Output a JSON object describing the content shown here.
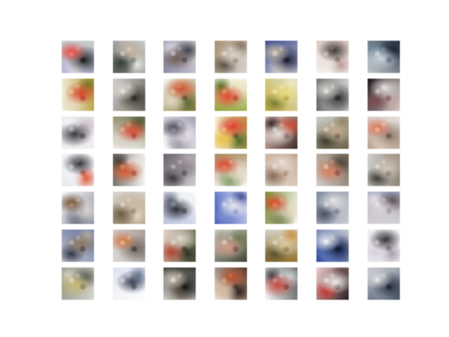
{
  "grid": {
    "rows": 7,
    "cols": 7
  },
  "tiles": [
    {
      "bg": "#b7b4d2",
      "c1": "#e24a3f",
      "c2": "#22282a",
      "c3": "#f2f0f4"
    },
    {
      "bg": "#6b6a63",
      "c1": "#c7b6a4",
      "c2": "#34403a",
      "c3": "#e7e6e2"
    },
    {
      "bg": "#8f8ba8",
      "c1": "#6e5c55",
      "c2": "#3d3c45",
      "c3": "#dcd6dd"
    },
    {
      "bg": "#a59174",
      "c1": "#d9d0c6",
      "c2": "#5a5048",
      "c3": "#7b6b56"
    },
    {
      "bg": "#3c4a8a",
      "c1": "#c7bba5",
      "c2": "#20243e",
      "c3": "#e9e0d2"
    },
    {
      "bg": "#d8c5bd",
      "c1": "#3e3533",
      "c2": "#ece1dc",
      "c3": "#b99d96"
    },
    {
      "bg": "#283649",
      "c1": "#c7d5dd",
      "c2": "#17202a",
      "c3": "#6f8593"
    },
    {
      "bg": "#b29b38",
      "c1": "#d2462d",
      "c2": "#e6d8be",
      "c3": "#6e7b2c"
    },
    {
      "bg": "#6d675e",
      "c1": "#d9d4cc",
      "c2": "#3d3a36",
      "c3": "#a49b8f"
    },
    {
      "bg": "#8a7a3e",
      "c1": "#c84f2d",
      "c2": "#dfd7c2",
      "c3": "#5f6b34"
    },
    {
      "bg": "#92a33c",
      "c1": "#db4a33",
      "c2": "#f0e6c8",
      "c3": "#5a6d2c"
    },
    {
      "bg": "#c7b24a",
      "c1": "#e8da7d",
      "c2": "#7a7a32",
      "c3": "#efe9c9"
    },
    {
      "bg": "#6a6a68",
      "c1": "#d5d2ce",
      "c2": "#3b3b3b",
      "c3": "#9d9c99"
    },
    {
      "bg": "#1b1315",
      "c1": "#e5dedd",
      "c2": "#7d4d50",
      "c3": "#c1a8a4"
    },
    {
      "bg": "#e6e3ea",
      "c1": "#3a3a3f",
      "c2": "#c9b8c4",
      "c3": "#fbfbfb"
    },
    {
      "bg": "#7a7a55",
      "c1": "#d64e35",
      "c2": "#d8d1c5",
      "c3": "#4a5532"
    },
    {
      "bg": "#a7a2b6",
      "c1": "#4b4753",
      "c2": "#e6e1ea",
      "c3": "#7f7887"
    },
    {
      "bg": "#b6924a",
      "c1": "#d83a2b",
      "c2": "#e6c14a",
      "c3": "#4a6b2e"
    },
    {
      "bg": "#3f2a25",
      "c1": "#e4ddd9",
      "c2": "#cc4b33",
      "c3": "#1e1614"
    },
    {
      "bg": "#6c6247",
      "c1": "#c1ad8e",
      "c2": "#3d3a2d",
      "c3": "#8d7f63"
    },
    {
      "bg": "#b9a191",
      "c1": "#d9765d",
      "c2": "#8f7d70",
      "c3": "#e4d8cf"
    },
    {
      "bg": "#e3e4ec",
      "c1": "#2e3035",
      "c2": "#f2f2f5",
      "c3": "#d95a3b"
    },
    {
      "bg": "#6f6b63",
      "c1": "#d25a34",
      "c2": "#e9e3dc",
      "c3": "#3f3b36"
    },
    {
      "bg": "#69636b",
      "c1": "#8b8189",
      "c2": "#3a353a",
      "c3": "#b8a9b4"
    },
    {
      "bg": "#a88d62",
      "c1": "#d8442f",
      "c2": "#e9e1d2",
      "c3": "#5c7f3b"
    },
    {
      "bg": "#c1a38b",
      "c1": "#e5d9cf",
      "c2": "#8b6b58",
      "c3": "#d9c4b5"
    },
    {
      "bg": "#7a6a5a",
      "c1": "#d67f63",
      "c2": "#4a4039",
      "c3": "#b8a390"
    },
    {
      "bg": "#8f8477",
      "c1": "#d1c6bc",
      "c2": "#3e3a35",
      "c3": "#ad9d8e"
    },
    {
      "bg": "#8b8ea1",
      "c1": "#6b4e33",
      "c2": "#dad6d2",
      "c3": "#4e5768"
    },
    {
      "bg": "#a8957a",
      "c1": "#c8b8a3",
      "c2": "#6b5a45",
      "c3": "#dfd4c7"
    },
    {
      "bg": "#b9c2dd",
      "c1": "#2b2f35",
      "c2": "#f4f4f6",
      "c3": "#6b7282"
    },
    {
      "bg": "#3c54b5",
      "c1": "#e7e6ee",
      "c2": "#7f8fca",
      "c3": "#263882"
    },
    {
      "bg": "#7b8a3b",
      "c1": "#d4472e",
      "c2": "#e7ddc8",
      "c3": "#516126"
    },
    {
      "bg": "#7f889e",
      "c1": "#e2e1e3",
      "c2": "#4a5060",
      "c3": "#b9bcc6"
    },
    {
      "bg": "#9aa1be",
      "c1": "#dcd4d6",
      "c2": "#5b4d4d",
      "c3": "#e7e0e3"
    },
    {
      "bg": "#5c6d9b",
      "c1": "#8b785f",
      "c2": "#2f3342",
      "c3": "#b8b2a6"
    },
    {
      "bg": "#a99f98",
      "c1": "#d2794a",
      "c2": "#6a615b",
      "c3": "#d8d1cc"
    },
    {
      "bg": "#4f5b3c",
      "c1": "#d6d0c5",
      "c2": "#b04532",
      "c3": "#2d3526"
    },
    {
      "bg": "#3f4533",
      "c1": "#d09a86",
      "c2": "#6b7550",
      "c3": "#a29d91"
    },
    {
      "bg": "#8e6f2d",
      "c1": "#d8c9a3",
      "c2": "#5a5130",
      "c3": "#c58b3a"
    },
    {
      "bg": "#2e4a9a",
      "c1": "#e7e9ef",
      "c2": "#101c3f",
      "c3": "#6d86c7"
    },
    {
      "bg": "#ece8f0",
      "c1": "#2d2b2f",
      "c2": "#d6d0da",
      "c3": "#a59eaa"
    },
    {
      "bg": "#8a8d7c",
      "c1": "#c8b978",
      "c2": "#5a5c50",
      "c3": "#d4d1c4"
    },
    {
      "bg": "#dfe3ef",
      "c1": "#384254",
      "c2": "#f6f7fa",
      "c3": "#7a8aa6"
    },
    {
      "bg": "#3a3d33",
      "c1": "#d2c6b7",
      "c2": "#1f211d",
      "c3": "#8c7f6a"
    },
    {
      "bg": "#4d3526",
      "c1": "#b5512f",
      "c2": "#d3b99d",
      "c3": "#2a1d17"
    },
    {
      "bg": "#606866",
      "c1": "#c24c44",
      "c2": "#d2d4d6",
      "c3": "#3a3f40"
    },
    {
      "bg": "#2a1d1f",
      "c1": "#f1ecec",
      "c2": "#c23b33",
      "c3": "#5a4143"
    },
    {
      "bg": "#4f5b6e",
      "c1": "#d6d9dd",
      "c2": "#2e3441",
      "c3": "#8c9aab"
    }
  ]
}
